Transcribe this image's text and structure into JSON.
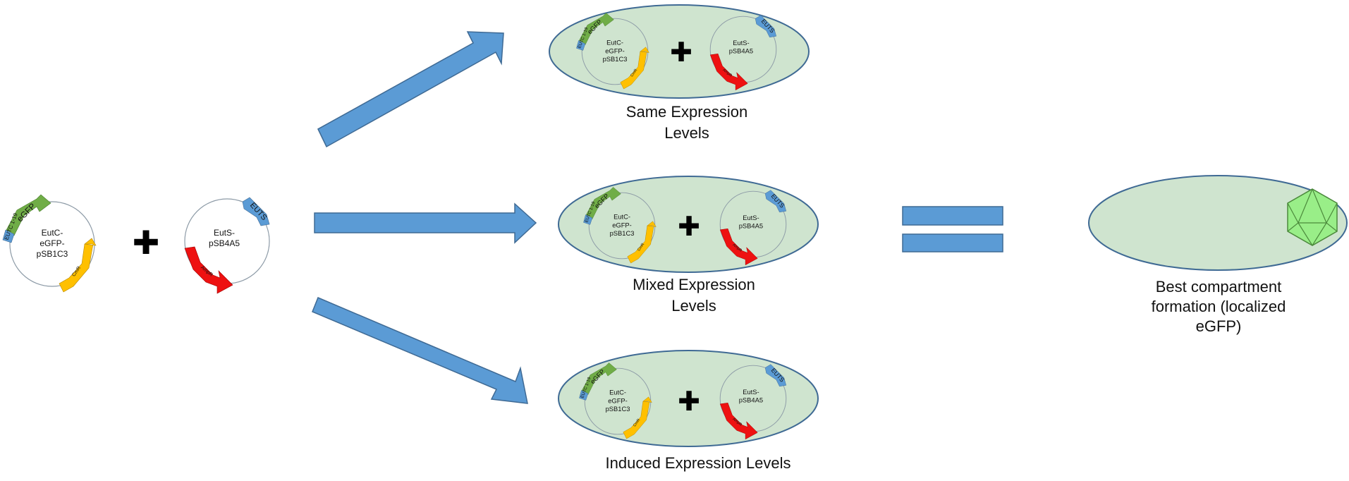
{
  "colors": {
    "arrow": "#5b9bd5",
    "cell": "#cfe4cf",
    "gfp": "#70ad47",
    "tag": "#5b9bd5",
    "orange": "#ffc000",
    "red": "#ee1111",
    "compartment": "#99ee88"
  },
  "plasmid_a": {
    "name_line1": "EutC-",
    "name_line2": "eGFP-",
    "name_line3": "pSB1C3",
    "tag_label": "EUTC 1-19",
    "gfp_label": "eGFP",
    "orange_label": "CmR"
  },
  "plasmid_b": {
    "name_line1": "EutS-",
    "name_line2": "pSB4A5",
    "tag_label": "EUTS",
    "red_label": "AmpR"
  },
  "plus_symbol": "✚",
  "captions": {
    "same_line1": "Same Expression",
    "same_line2": "Levels",
    "mixed_line1": "Mixed Expression",
    "mixed_line2": "Levels",
    "induced": "Induced Expression Levels",
    "best_line1": "Best compartment",
    "best_line2": "formation (localized",
    "best_line3": "eGFP)"
  },
  "compartment_icon": "icosahedron-icon"
}
